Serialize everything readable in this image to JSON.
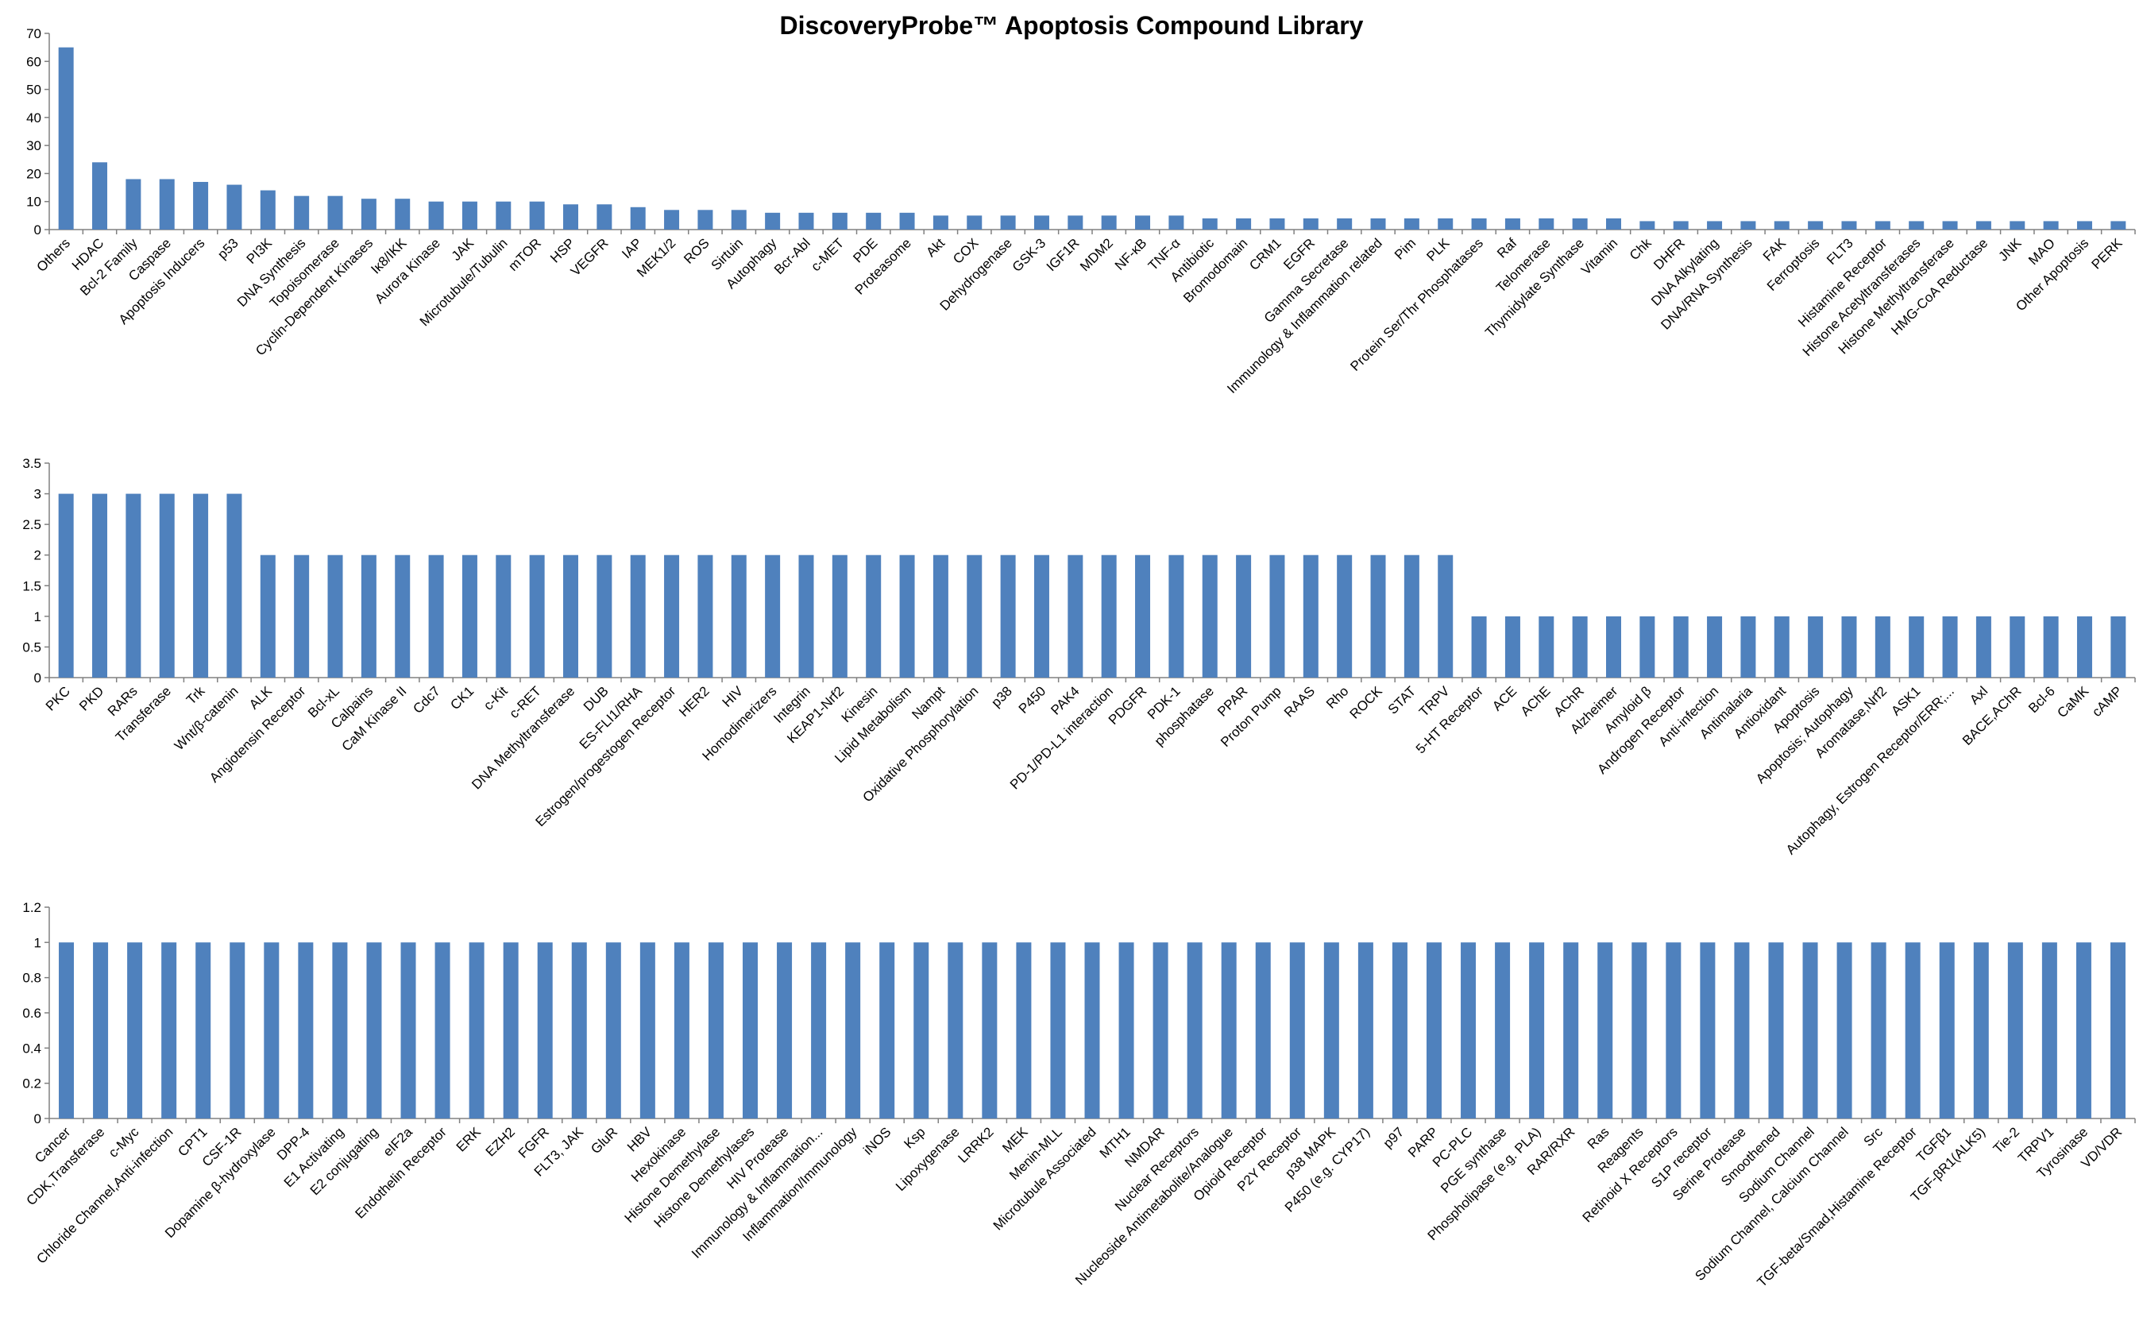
{
  "title": "DiscoveryProbe™ Apoptosis Compound Library",
  "chart_data": [
    {
      "type": "bar",
      "ylim": [
        0,
        70
      ],
      "yticks": [
        0,
        10,
        20,
        30,
        40,
        50,
        60,
        70
      ],
      "ytick_labels": [
        "0",
        "10",
        "20",
        "30",
        "40",
        "50",
        "60",
        "70"
      ],
      "categories": [
        "Others",
        "HDAC",
        "Bcl-2 Family",
        "Caspase",
        "Apoptosis Inducers",
        "p53",
        "PI3K",
        "DNA Synthesis",
        "Topoisomerase",
        "Cyclin-Dependent Kinases",
        "Iκ8/IKK",
        "Aurora Kinase",
        "JAK",
        "Microtubule/Tubulin",
        "mTOR",
        "HSP",
        "VEGFR",
        "IAP",
        "MEK1/2",
        "ROS",
        "Sirtuin",
        "Autophagy",
        "Bcr-Abl",
        "c-MET",
        "PDE",
        "Proteasome",
        "Akt",
        "COX",
        "Dehydrogenase",
        "GSK-3",
        "IGF1R",
        "MDM2",
        "NF-κB",
        "TNF-α",
        "Antibiotic",
        "Bromodomain",
        "CRM1",
        "EGFR",
        "Gamma Secretase",
        "Immunology & Inflammation related",
        "Pim",
        "PLK",
        "Protein Ser/Thr Phosphatases",
        "Raf",
        "Telomerase",
        "Thymidylate Synthase",
        "Vitamin",
        "Chk",
        "DHFR",
        "DNA Alkylating",
        "DNA/RNA Synthesis",
        "FAK",
        "Ferroptosis",
        "FLT3",
        "Histamine Receptor",
        "Histone Acetyltransferases",
        "Histone Methyltransferase",
        "HMG-CoA Reductase",
        "JNK",
        "MAO",
        "Other Apoptosis",
        "PERK"
      ],
      "values": [
        65,
        24,
        18,
        18,
        17,
        16,
        14,
        12,
        12,
        11,
        11,
        10,
        10,
        10,
        10,
        9,
        9,
        8,
        7,
        7,
        7,
        6,
        6,
        6,
        6,
        6,
        5,
        5,
        5,
        5,
        5,
        5,
        5,
        5,
        4,
        4,
        4,
        4,
        4,
        4,
        4,
        4,
        4,
        4,
        4,
        4,
        4,
        3,
        3,
        3,
        3,
        3,
        3,
        3,
        3,
        3,
        3,
        3,
        3,
        3,
        3,
        3
      ]
    },
    {
      "type": "bar",
      "ylim": [
        0,
        3.5
      ],
      "yticks": [
        0,
        0.5,
        1,
        1.5,
        2,
        2.5,
        3,
        3.5
      ],
      "ytick_labels": [
        "0",
        "0.5",
        "1",
        "1.5",
        "2",
        "2.5",
        "3",
        "3.5"
      ],
      "categories": [
        "PKC",
        "PKD",
        "RARs",
        "Transferase",
        "Trk",
        "Wnt/β-catenin",
        "ALK",
        "Angiotensin Receptor",
        "Bcl-xL",
        "Calpains",
        "CaM Kinase II",
        "Cdc7",
        "CK1",
        "c-Kit",
        "c-RET",
        "DNA Methyltransferase",
        "DUB",
        "ES-FLI1/RHA",
        "Estrogen/progestogen Receptor",
        "HER2",
        "HIV",
        "Homodimerizers",
        "Integrin",
        "KEAP1-Nrf2",
        "Kinesin",
        "Lipid Metabolism",
        "Nampt",
        "Oxidative Phosphorylation",
        "p38",
        "P450",
        "PAK4",
        "PD-1/PD-L1 interaction",
        "PDGFR",
        "PDK-1",
        "phosphatase",
        "PPAR",
        "Proton Pump",
        "RAAS",
        "Rho",
        "ROCK",
        "STAT",
        "TRPV",
        "5-HT Receptor",
        "ACE",
        "AChE",
        "AChR",
        "Alzheimer",
        "Amyloid β",
        "Androgen Receptor",
        "Anti-infection",
        "Antimalaria",
        "Antioxidant",
        "Apoptosis",
        "Apoptosis; Autophagy",
        "Aromatase,Nrf2",
        "ASK1",
        "Autophagy, Estrogen Receptor/ERR;...",
        "Axl",
        "BACE,AChR",
        "Bcl-6",
        "CaMK",
        "cAMP"
      ],
      "values": [
        3,
        3,
        3,
        3,
        3,
        3,
        2,
        2,
        2,
        2,
        2,
        2,
        2,
        2,
        2,
        2,
        2,
        2,
        2,
        2,
        2,
        2,
        2,
        2,
        2,
        2,
        2,
        2,
        2,
        2,
        2,
        2,
        2,
        2,
        2,
        2,
        2,
        2,
        2,
        2,
        2,
        2,
        1,
        1,
        1,
        1,
        1,
        1,
        1,
        1,
        1,
        1,
        1,
        1,
        1,
        1,
        1,
        1,
        1,
        1,
        1,
        1
      ]
    },
    {
      "type": "bar",
      "ylim": [
        0,
        1.2
      ],
      "yticks": [
        0,
        0.2,
        0.4,
        0.6,
        0.8,
        1,
        1.2
      ],
      "ytick_labels": [
        "0",
        "0.2",
        "0.4",
        "0.6",
        "0.8",
        "1",
        "1.2"
      ],
      "categories": [
        "Cancer",
        "CDK,Transferase",
        "c-Myc",
        "Chloride Channel,Anti-infection",
        "CPT1",
        "CSF-1R",
        "Dopamine β-hydroxylase",
        "DPP-4",
        "E1 Activating",
        "E2 conjugating",
        "eIF2a",
        "Endothelin Receptor",
        "ERK",
        "EZH2",
        "FGFR",
        "FLT3, JAK",
        "GluR",
        "HBV",
        "Hexokinase",
        "Histone Demethylase",
        "Histone Demethylases",
        "HIV Protease",
        "Immunology & Inflammation...",
        "Inflammation/Immunology",
        "iNOS",
        "Ksp",
        "Lipoxygenase",
        "LRRK2",
        "MEK",
        "Menin-MLL",
        "Microtubule Associated",
        "MTH1",
        "NMDAR",
        "Nuclear Receptors",
        "Nucleoside Antimetabolite/Analogue",
        "Opioid Receptor",
        "P2Y Receptor",
        "p38 MAPK",
        "P450 (e.g. CYP17)",
        "p97",
        "PARP",
        "PC-PLC",
        "PGE synthase",
        "Phospholipase (e.g. PLA)",
        "RAR/RXR",
        "Ras",
        "Reagents",
        "Retinoid X Receptors",
        "S1P receptor",
        "Serine Protease",
        "Smoothened",
        "Sodium Channel",
        "Sodium Channel, Calcium Channel",
        "Src",
        "TGF-beta/Smad,Histamine Receptor",
        "TGFβ1",
        "TGF-βR1(ALK5)",
        "Tie-2",
        "TRPV1",
        "Tyrosinase",
        "VD/VDR"
      ],
      "values": [
        1,
        1,
        1,
        1,
        1,
        1,
        1,
        1,
        1,
        1,
        1,
        1,
        1,
        1,
        1,
        1,
        1,
        1,
        1,
        1,
        1,
        1,
        1,
        1,
        1,
        1,
        1,
        1,
        1,
        1,
        1,
        1,
        1,
        1,
        1,
        1,
        1,
        1,
        1,
        1,
        1,
        1,
        1,
        1,
        1,
        1,
        1,
        1,
        1,
        1,
        1,
        1,
        1,
        1,
        1,
        1,
        1,
        1,
        1,
        1,
        1
      ]
    }
  ]
}
